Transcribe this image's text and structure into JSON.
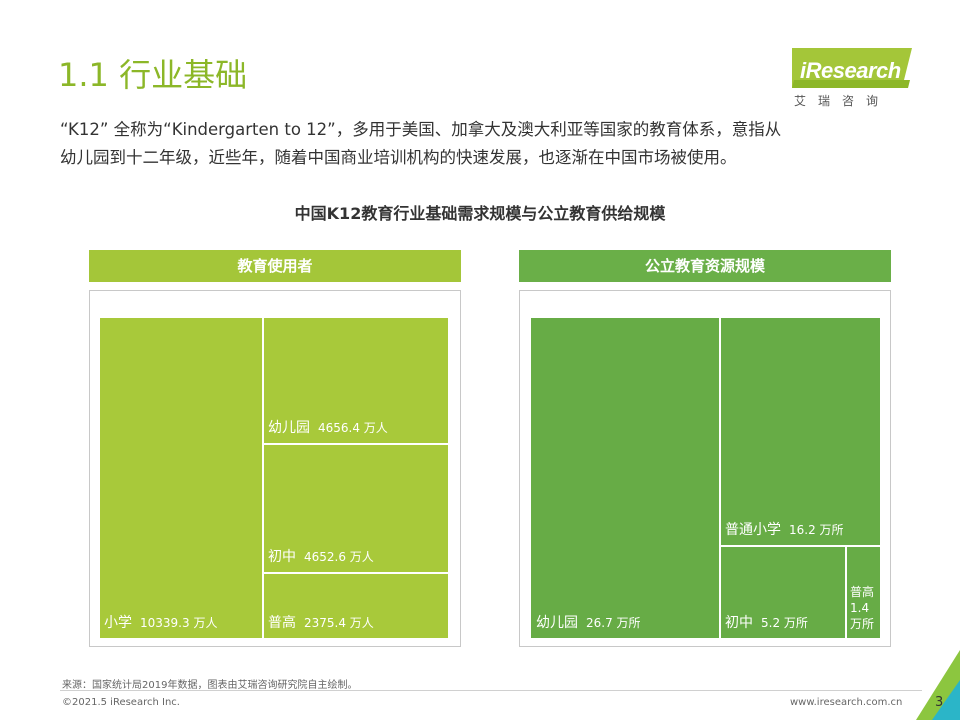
{
  "title": "1.1 行业基础",
  "logo": {
    "text": "iResearch",
    "sub": "艾瑞咨询"
  },
  "intro": {
    "line1": "“K12” 全称为“Kindergarten to 12”，多用于美国、加拿大及澳大利亚等国家的教育体系，意指从",
    "line2": "幼儿园到十二年级，近些年，随着中国商业培训机构的快速发展，也逐渐在中国市场被使用。"
  },
  "chart_title": "中国K12教育行业基础需求规模与公立教育供给规模",
  "colors": {
    "title_green": "#8cb728",
    "yellow_green": "#a8c93a",
    "dark_green": "#67ac46"
  },
  "panels": {
    "left": {
      "header": "教育使用者",
      "cells": {
        "primary": {
          "name": "小学",
          "value": "10339.3 万人"
        },
        "kinder": {
          "name": "幼儿园",
          "value": "4656.4 万人"
        },
        "junior": {
          "name": "初中",
          "value": "4652.6 万人"
        },
        "senior": {
          "name": "普高",
          "value": "2375.4 万人"
        }
      }
    },
    "right": {
      "header": "公立教育资源规模",
      "cells": {
        "kinder": {
          "name": "幼儿园",
          "value": "26.7 万所"
        },
        "primary": {
          "name": "普通小学",
          "value": "16.2 万所"
        },
        "junior": {
          "name": "初中",
          "value": "5.2 万所"
        },
        "senior": {
          "name": "普高",
          "value_num": "1.4",
          "value_unit": "万所"
        }
      }
    }
  },
  "chart_data": [
    {
      "type": "treemap",
      "title": "教育使用者",
      "unit": "万人",
      "categories": [
        "小学",
        "幼儿园",
        "初中",
        "普高"
      ],
      "values": [
        10339.3,
        4656.4,
        4652.6,
        2375.4
      ]
    },
    {
      "type": "treemap",
      "title": "公立教育资源规模",
      "unit": "万所",
      "categories": [
        "幼儿园",
        "普通小学",
        "初中",
        "普高"
      ],
      "values": [
        26.7,
        16.2,
        5.2,
        1.4
      ]
    }
  ],
  "footer": {
    "source": "来源：国家统计局2019年数据，图表由艾瑞咨询研究院自主绘制。",
    "copyright": "©2021.5 iResearch Inc.",
    "website": "www.iresearch.com.cn",
    "page": "3"
  }
}
